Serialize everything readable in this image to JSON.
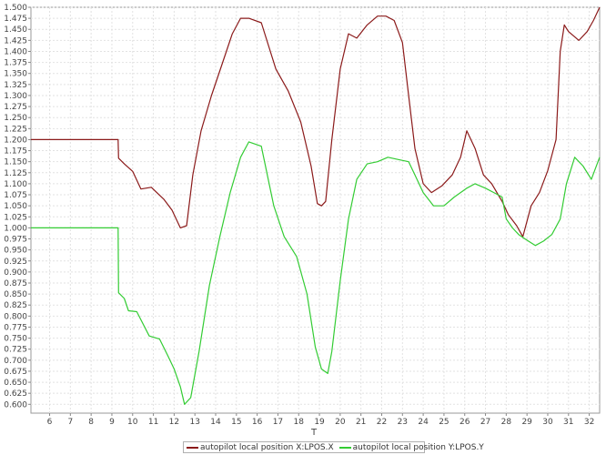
{
  "chart_data": {
    "type": "line",
    "xlabel": "T",
    "ylabel": "",
    "xlim": [
      5.1,
      32.5
    ],
    "ylim": [
      0.58,
      1.5
    ],
    "x_ticks": [
      6,
      7,
      8,
      9,
      10,
      11,
      12,
      13,
      14,
      15,
      16,
      17,
      18,
      19,
      20,
      21,
      22,
      23,
      24,
      25,
      26,
      27,
      28,
      29,
      30,
      31,
      32
    ],
    "y_ticks": [
      0.6,
      0.625,
      0.65,
      0.675,
      0.7,
      0.725,
      0.75,
      0.775,
      0.8,
      0.825,
      0.85,
      0.875,
      0.9,
      0.925,
      0.95,
      0.975,
      1.0,
      1.025,
      1.05,
      1.075,
      1.1,
      1.125,
      1.15,
      1.175,
      1.2,
      1.225,
      1.25,
      1.275,
      1.3,
      1.325,
      1.35,
      1.375,
      1.4,
      1.425,
      1.45,
      1.475,
      1.5
    ],
    "grid": true,
    "legend_position": "bottom",
    "series": [
      {
        "name": "autopilot local position X:LPOS.X",
        "color": "#8b1a1a",
        "x": [
          5.1,
          9.3,
          9.32,
          9.6,
          10.0,
          10.4,
          10.9,
          11.5,
          11.9,
          12.3,
          12.6,
          12.9,
          13.3,
          13.8,
          14.3,
          14.8,
          15.2,
          15.6,
          16.2,
          16.9,
          17.5,
          18.1,
          18.6,
          18.9,
          19.1,
          19.3,
          19.6,
          20.0,
          20.4,
          20.8,
          21.3,
          21.8,
          22.2,
          22.6,
          23.0,
          23.3,
          23.6,
          24.0,
          24.4,
          24.9,
          25.4,
          25.8,
          26.1,
          26.5,
          26.9,
          27.3,
          27.8,
          28.1,
          28.5,
          28.8,
          29.2,
          29.6,
          30.0,
          30.4,
          30.6,
          30.8,
          31.0,
          31.5,
          31.9,
          32.2,
          32.5
        ],
        "y": [
          1.2,
          1.2,
          1.158,
          1.145,
          1.128,
          1.088,
          1.092,
          1.065,
          1.04,
          1.0,
          1.005,
          1.12,
          1.22,
          1.3,
          1.37,
          1.44,
          1.475,
          1.475,
          1.465,
          1.36,
          1.31,
          1.24,
          1.14,
          1.055,
          1.05,
          1.06,
          1.2,
          1.36,
          1.44,
          1.43,
          1.46,
          1.48,
          1.48,
          1.47,
          1.42,
          1.3,
          1.18,
          1.1,
          1.08,
          1.095,
          1.12,
          1.16,
          1.22,
          1.18,
          1.12,
          1.1,
          1.06,
          1.03,
          1.005,
          0.98,
          1.05,
          1.08,
          1.13,
          1.2,
          1.4,
          1.46,
          1.445,
          1.425,
          1.445,
          1.47,
          1.5
        ]
      },
      {
        "name": "autopilot local position Y:LPOS.Y",
        "color": "#33cc33",
        "x": [
          5.1,
          9.3,
          9.32,
          9.6,
          9.8,
          10.2,
          10.8,
          11.3,
          11.7,
          12.0,
          12.3,
          12.5,
          12.8,
          13.2,
          13.7,
          14.2,
          14.7,
          15.2,
          15.6,
          16.2,
          16.8,
          17.3,
          17.9,
          18.4,
          18.8,
          19.1,
          19.4,
          19.6,
          20.0,
          20.4,
          20.8,
          21.3,
          21.8,
          22.3,
          22.8,
          23.3,
          23.6,
          24.0,
          24.5,
          25.0,
          25.5,
          26.1,
          26.5,
          27.0,
          27.4,
          27.8,
          28.0,
          28.3,
          28.6,
          28.9,
          29.4,
          29.8,
          30.2,
          30.6,
          30.9,
          31.3,
          31.7,
          32.1,
          32.5
        ],
        "y": [
          1.0,
          1.0,
          0.853,
          0.84,
          0.812,
          0.81,
          0.755,
          0.748,
          0.71,
          0.68,
          0.64,
          0.6,
          0.615,
          0.72,
          0.87,
          0.98,
          1.08,
          1.16,
          1.195,
          1.185,
          1.05,
          0.98,
          0.935,
          0.85,
          0.73,
          0.68,
          0.67,
          0.72,
          0.88,
          1.02,
          1.11,
          1.145,
          1.15,
          1.16,
          1.155,
          1.15,
          1.12,
          1.08,
          1.05,
          1.05,
          1.07,
          1.09,
          1.1,
          1.09,
          1.08,
          1.07,
          1.02,
          1.0,
          0.985,
          0.975,
          0.96,
          0.97,
          0.985,
          1.02,
          1.1,
          1.16,
          1.14,
          1.11,
          1.16
        ]
      }
    ]
  }
}
